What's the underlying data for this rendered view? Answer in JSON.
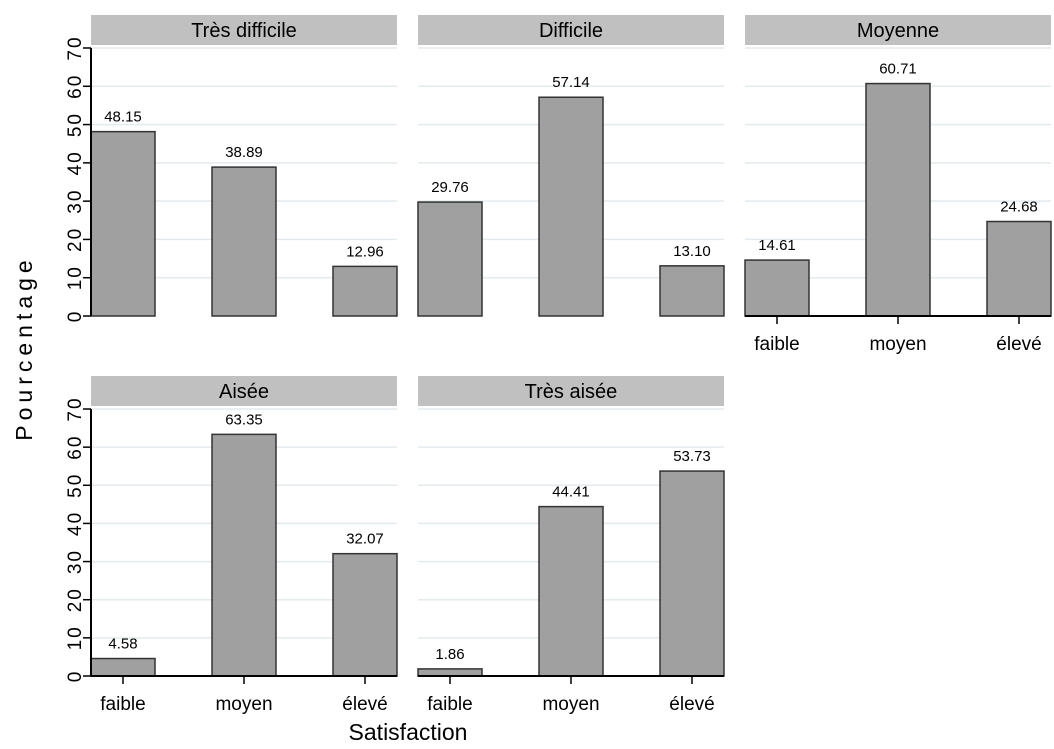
{
  "chart_data": {
    "type": "bar",
    "xlabel": "Satisfaction",
    "ylabel": "Pourcentage",
    "ylim": [
      0,
      70
    ],
    "yticks": [
      0,
      10,
      20,
      30,
      40,
      50,
      60,
      70
    ],
    "categories": [
      "faible",
      "moyen",
      "élevé"
    ],
    "grid": true,
    "panels": [
      {
        "title": "Très difficile",
        "values": [
          48.15,
          38.89,
          12.96
        ],
        "labels": [
          "48.15",
          "38.89",
          "12.96"
        ]
      },
      {
        "title": "Difficile",
        "values": [
          29.76,
          57.14,
          13.1
        ],
        "labels": [
          "29.76",
          "57.14",
          "13.10"
        ]
      },
      {
        "title": "Moyenne",
        "values": [
          14.61,
          60.71,
          24.68
        ],
        "labels": [
          "14.61",
          "60.71",
          "24.68"
        ]
      },
      {
        "title": "Aisée",
        "values": [
          4.58,
          63.35,
          32.07
        ],
        "labels": [
          "4.58",
          "63.35",
          "32.07"
        ]
      },
      {
        "title": "Très aisée",
        "values": [
          1.86,
          44.41,
          53.73
        ],
        "labels": [
          "1.86",
          "44.41",
          "53.73"
        ]
      }
    ]
  }
}
